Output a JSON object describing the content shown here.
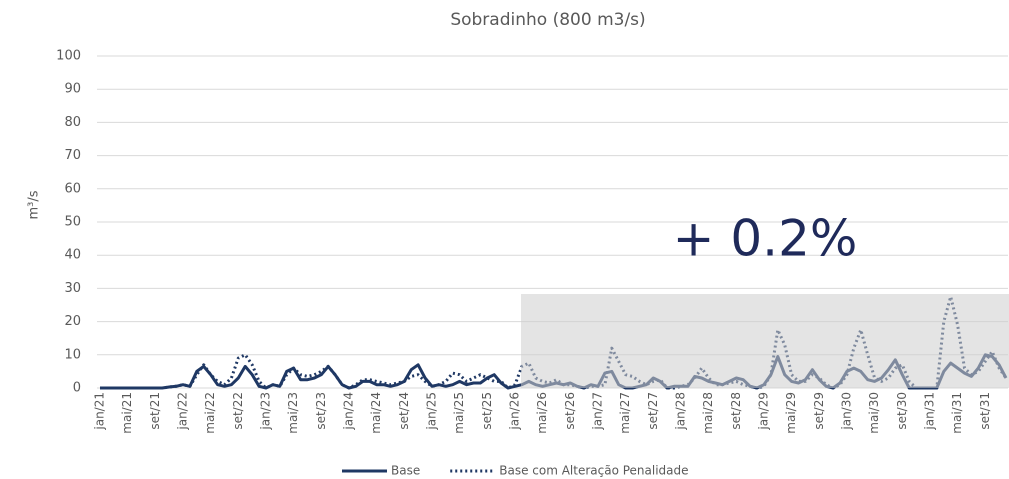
{
  "chart_data": {
    "type": "line",
    "title": "Sobradinho (800 m3/s)",
    "y_label": "m³/s",
    "annotation": "+ 0.2%",
    "categories": [
      "jan/21",
      null,
      null,
      null,
      "mai/21",
      null,
      null,
      null,
      "set/21",
      null,
      null,
      null,
      "jan/22",
      null,
      null,
      null,
      "mai/22",
      null,
      null,
      null,
      "set/22",
      null,
      null,
      null,
      "jan/23",
      null,
      null,
      null,
      "mai/23",
      null,
      null,
      null,
      "set/23",
      null,
      null,
      null,
      "jan/24",
      null,
      null,
      null,
      "mai/24",
      null,
      null,
      null,
      "set/24",
      null,
      null,
      null,
      "jan/25",
      null,
      null,
      null,
      "mai/25",
      null,
      null,
      null,
      "set/25",
      null,
      null,
      null,
      "jan/26",
      null,
      null,
      null,
      "mai/26",
      null,
      null,
      null,
      "set/26",
      null,
      null,
      null,
      "jan/27",
      null,
      null,
      null,
      "mai/27",
      null,
      null,
      null,
      "set/27",
      null,
      null,
      null,
      "jan/28",
      null,
      null,
      null,
      "mai/28",
      null,
      null,
      null,
      "set/28",
      null,
      null,
      null,
      "jan/29",
      null,
      null,
      null,
      "mai/29",
      null,
      null,
      null,
      "set/29",
      null,
      null,
      null,
      "jan/30",
      null,
      null,
      null,
      "mai/30",
      null,
      null,
      null,
      "set/30",
      null,
      null,
      null,
      "jan/31",
      null,
      null,
      null,
      "mai/31",
      null,
      null,
      null,
      "set/31",
      null,
      null,
      null
    ],
    "series": [
      {
        "name": "Base",
        "color": "#1f3864",
        "dash": "solid",
        "values": [
          0,
          0,
          0,
          0,
          0,
          0,
          0,
          0,
          0,
          0,
          0.3,
          0.5,
          1,
          0.5,
          5,
          6.5,
          4,
          1,
          0.5,
          1,
          3,
          6.5,
          4,
          0.5,
          0,
          1,
          0.5,
          5,
          6,
          2.5,
          2.5,
          3,
          4,
          6.5,
          4,
          1,
          0,
          0.5,
          2,
          2,
          1,
          1,
          0.5,
          1,
          2,
          5.5,
          7,
          3,
          0.5,
          1,
          0.5,
          1,
          2,
          1,
          1.5,
          1.5,
          3,
          4,
          1.5,
          0,
          0.5,
          1,
          2,
          1,
          0.5,
          1,
          1.5,
          1,
          1.5,
          0.5,
          0,
          1,
          0.5,
          4.5,
          5,
          1,
          0,
          0,
          0.5,
          1,
          3,
          2,
          0,
          0.5,
          0.5,
          0.5,
          3.5,
          3,
          2,
          1.5,
          1,
          2,
          3,
          2.5,
          0.5,
          0,
          1,
          4,
          9.5,
          4,
          2,
          1.5,
          2.5,
          5.5,
          2.5,
          0.5,
          0,
          1.5,
          5,
          6,
          5,
          2.5,
          2,
          3,
          5.5,
          8.5,
          4,
          0,
          0,
          0,
          0,
          0,
          5,
          7.5,
          6,
          4.5,
          3.5,
          6,
          10,
          9.5,
          7,
          3
        ]
      },
      {
        "name": "Base com Alteração Penalidade",
        "color": "#1f3864",
        "dash": "dotted",
        "values": [
          0,
          0,
          0,
          0,
          0,
          0,
          0,
          0,
          0,
          0,
          0.3,
          0.5,
          1,
          0.5,
          4,
          7,
          4,
          2,
          1,
          3,
          9,
          10,
          7,
          2,
          0,
          1,
          0.5,
          4,
          6,
          4,
          3.5,
          4,
          5,
          6.5,
          4,
          1,
          0,
          1,
          2.5,
          2.5,
          2,
          1.5,
          1,
          1.5,
          2,
          3.5,
          4,
          2,
          0.5,
          1,
          2,
          4.5,
          4,
          2,
          3,
          4,
          3,
          2,
          2,
          0,
          1,
          6.5,
          7.5,
          3,
          2,
          1.5,
          2.5,
          1,
          1,
          0.5,
          0,
          0.5,
          0.5,
          1,
          12,
          8,
          4,
          3.5,
          2,
          1,
          2,
          2.5,
          0,
          0,
          0.5,
          1,
          3,
          6,
          3,
          1,
          1,
          1.5,
          2,
          1,
          0.5,
          0,
          0.5,
          4,
          17.5,
          13,
          4,
          2,
          2,
          4,
          3,
          1,
          0,
          1,
          4,
          12,
          17.5,
          10,
          3,
          2,
          3,
          6,
          7,
          2,
          0,
          0,
          0,
          0,
          20,
          27.5,
          19,
          6,
          4,
          5,
          8,
          11,
          6,
          3
        ]
      }
    ],
    "ylim": [
      0,
      100
    ],
    "yticks": [
      0,
      10,
      20,
      30,
      40,
      50,
      60,
      70,
      80,
      90,
      100
    ],
    "grid": true,
    "legend": "bottom"
  }
}
